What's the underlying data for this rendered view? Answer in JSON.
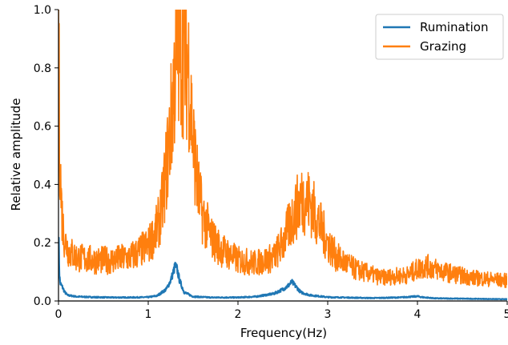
{
  "chart_data": {
    "type": "line",
    "title": "",
    "xlabel": "Frequency(Hz)",
    "ylabel": "Relative amplitude",
    "xlim": [
      0,
      5
    ],
    "ylim": [
      0,
      1
    ],
    "x_ticks": [
      0,
      1,
      2,
      3,
      4,
      5
    ],
    "y_ticks": [
      0.0,
      0.2,
      0.4,
      0.6,
      0.8,
      1.0
    ],
    "x_tick_labels": [
      "0",
      "1",
      "2",
      "3",
      "4",
      "5"
    ],
    "y_tick_labels": [
      "0.0",
      "0.2",
      "0.4",
      "0.6",
      "0.8",
      "1.0"
    ],
    "grid": false,
    "legend_position": "top-right",
    "series": [
      {
        "name": "Rumination",
        "color": "#1f77b4",
        "x": [
          0,
          0.01,
          0.02,
          0.04,
          0.07,
          0.1,
          0.2,
          0.4,
          0.6,
          0.8,
          1.0,
          1.1,
          1.2,
          1.25,
          1.28,
          1.3,
          1.32,
          1.35,
          1.4,
          1.5,
          1.7,
          2.0,
          2.2,
          2.4,
          2.5,
          2.55,
          2.6,
          2.63,
          2.7,
          2.8,
          3.0,
          3.5,
          3.8,
          3.95,
          4.0,
          4.05,
          4.2,
          4.5,
          5.0
        ],
        "y": [
          0.25,
          0.09,
          0.06,
          0.05,
          0.03,
          0.02,
          0.015,
          0.013,
          0.012,
          0.012,
          0.013,
          0.018,
          0.04,
          0.07,
          0.1,
          0.12,
          0.11,
          0.07,
          0.03,
          0.015,
          0.012,
          0.012,
          0.015,
          0.025,
          0.04,
          0.05,
          0.065,
          0.055,
          0.03,
          0.02,
          0.013,
          0.01,
          0.012,
          0.015,
          0.016,
          0.013,
          0.009,
          0.008,
          0.006
        ]
      },
      {
        "name": "Grazing",
        "color": "#ff7f0e",
        "x": [
          0,
          0.01,
          0.03,
          0.05,
          0.08,
          0.12,
          0.2,
          0.4,
          0.6,
          0.8,
          1.0,
          1.1,
          1.15,
          1.2,
          1.25,
          1.3,
          1.35,
          1.4,
          1.45,
          1.5,
          1.55,
          1.6,
          1.7,
          1.8,
          2.0,
          2.2,
          2.4,
          2.5,
          2.6,
          2.7,
          2.8,
          2.9,
          3.0,
          3.1,
          3.3,
          3.6,
          3.9,
          4.0,
          4.1,
          4.3,
          4.6,
          5.0
        ],
        "y": [
          1.0,
          0.6,
          0.35,
          0.25,
          0.2,
          0.17,
          0.15,
          0.14,
          0.14,
          0.15,
          0.19,
          0.25,
          0.32,
          0.45,
          0.6,
          0.8,
          0.88,
          0.85,
          0.8,
          0.55,
          0.4,
          0.3,
          0.22,
          0.18,
          0.14,
          0.13,
          0.15,
          0.2,
          0.28,
          0.35,
          0.34,
          0.27,
          0.2,
          0.15,
          0.11,
          0.08,
          0.09,
          0.11,
          0.12,
          0.1,
          0.08,
          0.07
        ]
      }
    ]
  }
}
